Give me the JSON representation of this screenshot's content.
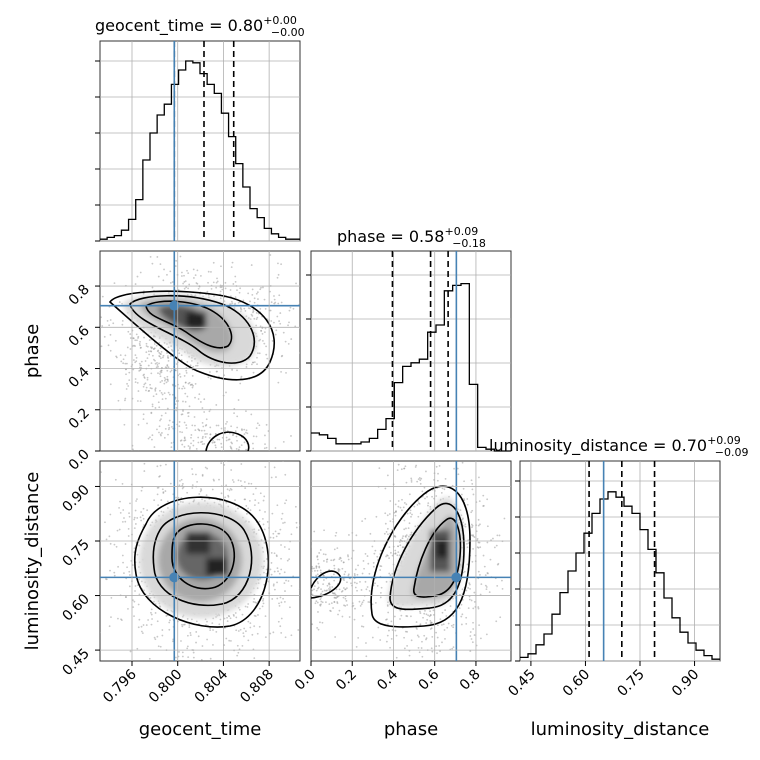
{
  "chart_data": {
    "type": "corner",
    "parameters": [
      {
        "name": "geocent_time",
        "range": [
          0.7932,
          0.8107
        ],
        "ticks": [
          "0.796",
          "0.800",
          "0.804",
          "0.808"
        ],
        "tick_values": [
          0.796,
          0.8,
          0.804,
          0.808
        ],
        "truth": 0.7997,
        "title": {
          "prefix": "geocent_time = ",
          "median": "0.80",
          "plus": "+0.00",
          "minus": "−0.00"
        },
        "quantiles": [
          0.7997,
          0.8023,
          0.8049
        ],
        "hist_range": [
          0.7932,
          0.8107
        ],
        "hist_max": 1.0,
        "hist": [
          0.01,
          0.02,
          0.03,
          0.06,
          0.12,
          0.23,
          0.45,
          0.6,
          0.7,
          0.76,
          0.87,
          0.95,
          1.0,
          0.99,
          0.93,
          0.87,
          0.82,
          0.71,
          0.58,
          0.43,
          0.3,
          0.18,
          0.13,
          0.07,
          0.04,
          0.02,
          0.01,
          0.01
        ]
      },
      {
        "name": "phase",
        "range": [
          0.0,
          0.97
        ],
        "ticks": [
          "0.0",
          "0.2",
          "0.4",
          "0.6",
          "0.8"
        ],
        "tick_values": [
          0.0,
          0.2,
          0.4,
          0.6,
          0.8
        ],
        "truth": 0.705,
        "title": {
          "prefix": "phase = ",
          "median": "0.58",
          "plus": "+0.09",
          "minus": "−0.18"
        },
        "quantiles": [
          0.395,
          0.58,
          0.665
        ],
        "hist_range": [
          0.0,
          0.97
        ],
        "hist_max": 1.0,
        "hist": [
          0.1,
          0.09,
          0.07,
          0.04,
          0.04,
          0.04,
          0.05,
          0.07,
          0.12,
          0.18,
          0.38,
          0.47,
          0.49,
          0.51,
          0.66,
          0.7,
          0.89,
          0.92,
          0.93,
          0.37,
          0.02,
          0.01,
          0.0,
          0.0
        ]
      },
      {
        "name": "luminosity_distance",
        "range": [
          0.42,
          0.97
        ],
        "ticks": [
          "0.45",
          "0.60",
          "0.75",
          "0.90"
        ],
        "tick_values": [
          0.45,
          0.6,
          0.75,
          0.9
        ],
        "truth": 0.65,
        "title": {
          "prefix": "luminosity_distance = ",
          "median": "0.70",
          "plus": "+0.09",
          "minus": "−0.09"
        },
        "quantiles": [
          0.61,
          0.7,
          0.79
        ],
        "hist_range": [
          0.42,
          0.97
        ],
        "hist_max": 1.0,
        "hist": [
          0.02,
          0.04,
          0.09,
          0.15,
          0.26,
          0.38,
          0.5,
          0.6,
          0.71,
          0.82,
          0.9,
          0.94,
          0.91,
          0.86,
          0.82,
          0.73,
          0.62,
          0.49,
          0.35,
          0.24,
          0.16,
          0.1,
          0.06,
          0.03,
          0.01
        ]
      }
    ],
    "contours": {
      "phase_vs_geocent_time": {
        "center": [
          0.8006,
          0.655
        ],
        "truth": [
          0.7997,
          0.705
        ]
      },
      "luminosity_distance_vs_geocent_time": {
        "center": [
          0.8024,
          0.7
        ],
        "truth": [
          0.7997,
          0.65
        ]
      },
      "luminosity_distance_vs_phase": {
        "center": [
          0.63,
          0.72
        ],
        "truth": [
          0.705,
          0.65
        ]
      }
    },
    "truth_color": "#4682b4",
    "grid": true
  }
}
